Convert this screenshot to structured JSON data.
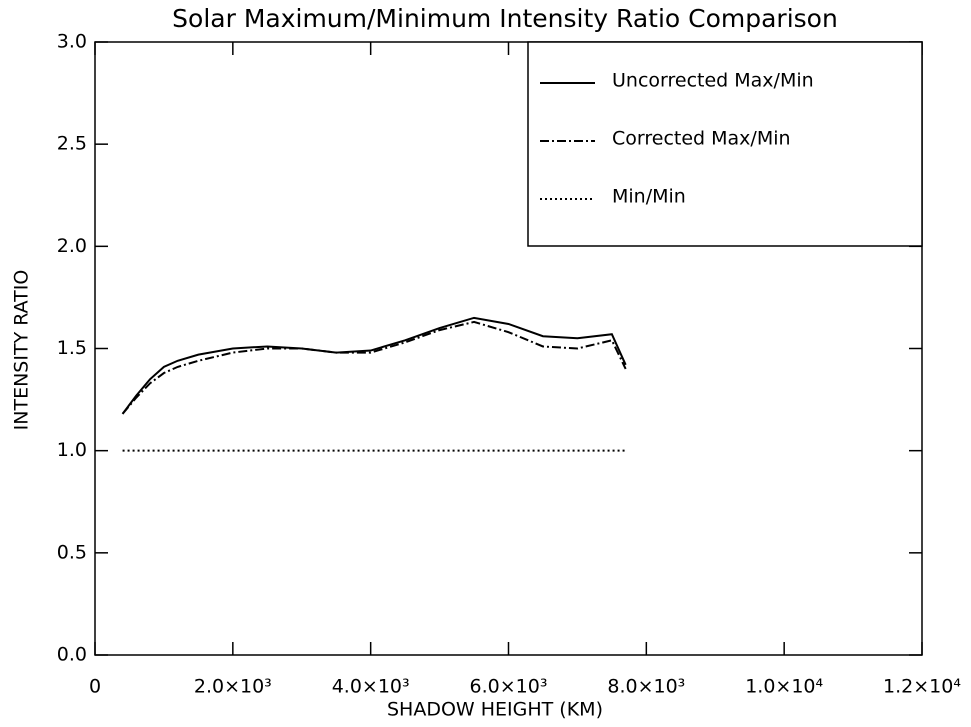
{
  "chart_data": {
    "type": "line",
    "title": "Solar Maximum/Minimum Intensity Ratio Comparison",
    "xlabel": "SHADOW HEIGHT  (KM)",
    "ylabel": "INTENSITY RATIO",
    "xlim": [
      0,
      12000
    ],
    "ylim": [
      0,
      3
    ],
    "xticks": [
      0,
      {
        "value": 2000,
        "label": "2.0×10³"
      },
      {
        "value": 4000,
        "label": "4.0×10³"
      },
      {
        "value": 6000,
        "label": "6.0×10³"
      },
      {
        "value": 8000,
        "label": "8.0×10³"
      },
      {
        "value": 10000,
        "label": "1.0×10⁴"
      },
      {
        "value": 12000,
        "label": "1.2×10⁴"
      }
    ],
    "yticks": [
      {
        "value": 0,
        "label": "0.0"
      },
      0.5,
      {
        "value": 1,
        "label": "1.0"
      },
      1.5,
      {
        "value": 2,
        "label": "2.0"
      },
      2.5,
      {
        "value": 3,
        "label": "3.0"
      }
    ],
    "legend": "upper right",
    "series": [
      {
        "name": "Uncorrected Max/Min",
        "color": "#000000",
        "linestyle": "solid",
        "x": [
          400,
          600,
          800,
          1000,
          1200,
          1500,
          2000,
          2500,
          3000,
          3500,
          4000,
          4500,
          5000,
          5500,
          6000,
          6500,
          7000,
          7500,
          7700
        ],
        "values": [
          1.18,
          1.27,
          1.35,
          1.41,
          1.44,
          1.47,
          1.5,
          1.51,
          1.5,
          1.48,
          1.49,
          1.54,
          1.6,
          1.65,
          1.62,
          1.56,
          1.55,
          1.57,
          1.42
        ]
      },
      {
        "name": "Corrected Max/Min",
        "color": "#000000",
        "linestyle": "dashdot",
        "x": [
          400,
          600,
          800,
          1000,
          1200,
          1500,
          2000,
          2500,
          3000,
          3500,
          4000,
          4500,
          5000,
          5500,
          6000,
          6500,
          7000,
          7500,
          7700
        ],
        "values": [
          1.18,
          1.26,
          1.33,
          1.38,
          1.41,
          1.44,
          1.48,
          1.5,
          1.5,
          1.48,
          1.48,
          1.53,
          1.59,
          1.63,
          1.58,
          1.51,
          1.5,
          1.54,
          1.4
        ]
      },
      {
        "name": "Min/Min",
        "color": "#000000",
        "linestyle": "dotted",
        "x": [
          400,
          7700
        ],
        "values": [
          1,
          1
        ]
      }
    ]
  }
}
